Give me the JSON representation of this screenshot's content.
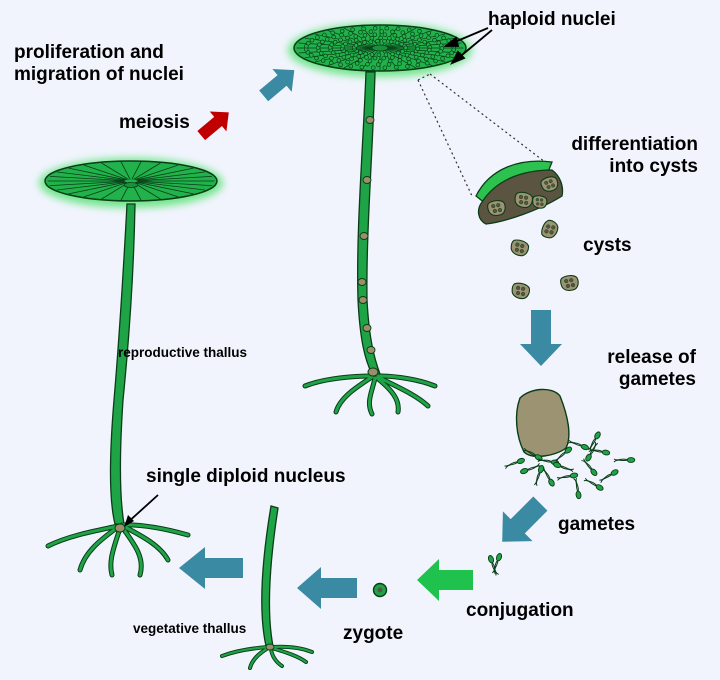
{
  "labels": {
    "proliferation_line1": "proliferation and",
    "proliferation_line2": "migration of nuclei",
    "meiosis": "meiosis",
    "haploid_nuclei": "haploid nuclei",
    "differentiation_line1": "differentiation",
    "differentiation_line2": "into cysts",
    "cysts": "cysts",
    "release_line1": "release of",
    "release_line2": "gametes",
    "gametes": "gametes",
    "conjugation": "conjugation",
    "zygote": "zygote",
    "single_diploid_nucleus": "single diploid nucleus",
    "reproductive_thallus": "reproductive thallus",
    "vegetative_thallus": "vegetative thallus"
  },
  "colors": {
    "background": "#f1f4fd",
    "cap_green": "#1db14a",
    "stalk_green": "#1fa347",
    "outline": "#0a3c18",
    "cyst_brown": "#8a8466",
    "blue_arrow": "#3a8aa3",
    "red_arrow": "#c00000",
    "green_arrow": "#1ec24c"
  }
}
